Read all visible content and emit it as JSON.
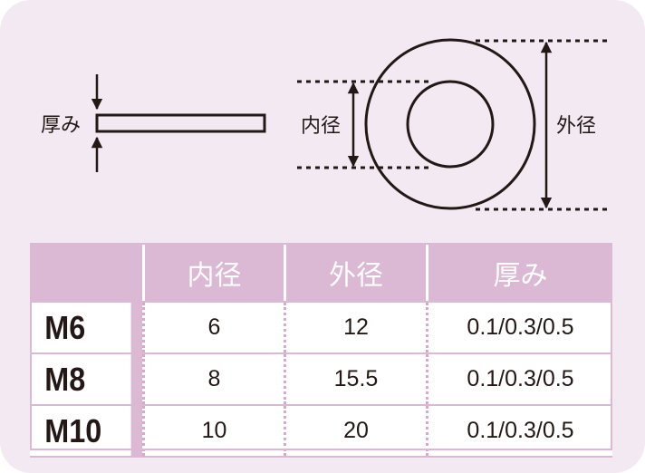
{
  "diagram": {
    "thickness_label": "厚み",
    "inner_diameter_label": "内径",
    "outer_diameter_label": "外径"
  },
  "table": {
    "headers": [
      "",
      "内径",
      "外径",
      "厚み"
    ],
    "rows": [
      {
        "size": "M6",
        "inner": "6",
        "outer": "12",
        "thickness": "0.1/0.3/0.5"
      },
      {
        "size": "M8",
        "inner": "8",
        "outer": "15.5",
        "thickness": "0.1/0.3/0.5"
      },
      {
        "size": "M10",
        "inner": "10",
        "outer": "20",
        "thickness": "0.1/0.3/0.5"
      }
    ]
  },
  "colors": {
    "background": "#f3e9f2",
    "header": "#dbb8d3",
    "ink": "#231815"
  }
}
